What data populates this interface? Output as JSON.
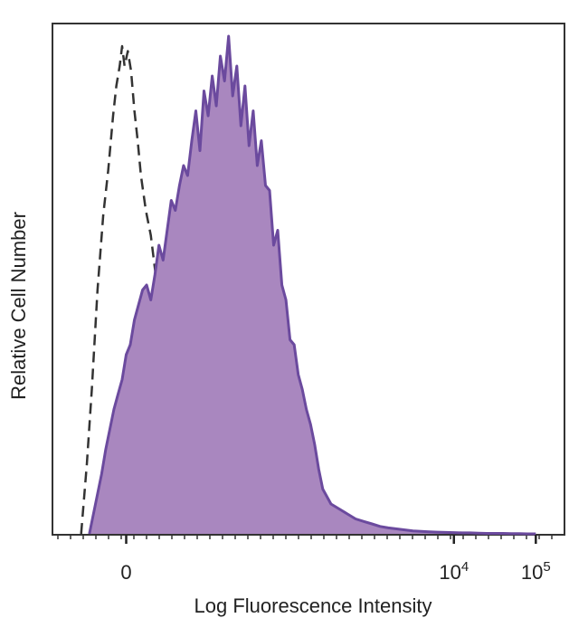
{
  "chart_data": {
    "type": "area",
    "title": "",
    "xlabel": "Log Fluorescence Intensity",
    "ylabel": "Relative Cell Number",
    "x_scale": "biexponential",
    "xlim": [
      -0.9,
      5.35
    ],
    "ylim": [
      0,
      100
    ],
    "x_ticks": [
      {
        "value": 0,
        "base": "0",
        "exp": ""
      },
      {
        "value": 4,
        "base": "10",
        "exp": "4"
      },
      {
        "value": 5,
        "base": "10",
        "exp": "5"
      }
    ],
    "grid": false,
    "legend": "none",
    "series": [
      {
        "style": "dashed-outline",
        "color": "#333333",
        "x": [
          -0.55,
          -0.48,
          -0.42,
          -0.35,
          -0.28,
          -0.22,
          -0.16,
          -0.12,
          -0.08,
          -0.05,
          -0.02,
          0.02,
          0.06,
          0.1,
          0.14,
          0.18,
          0.24,
          0.3,
          0.36,
          0.42,
          0.5,
          0.58,
          0.66,
          0.74,
          0.82,
          0.9,
          0.98,
          1.06,
          1.14,
          1.22,
          1.3,
          1.38,
          1.46,
          1.54,
          1.62,
          1.7,
          1.8,
          1.9
        ],
        "y": [
          0,
          14,
          29,
          49,
          64,
          73,
          84,
          90,
          94,
          98,
          94,
          97,
          93,
          85,
          79,
          72,
          65,
          60,
          52,
          45,
          38,
          32,
          27,
          21,
          17,
          13,
          10,
          8,
          6,
          5,
          3.5,
          2.5,
          1.8,
          1.2,
          0.8,
          0.5,
          0.2,
          0
        ]
      },
      {
        "style": "filled",
        "color": "#6b4a9e",
        "fill": "#a987bf",
        "x": [
          -0.45,
          -0.4,
          -0.35,
          -0.3,
          -0.25,
          -0.2,
          -0.15,
          -0.1,
          -0.05,
          0,
          0.05,
          0.1,
          0.15,
          0.2,
          0.25,
          0.3,
          0.35,
          0.4,
          0.45,
          0.5,
          0.55,
          0.6,
          0.65,
          0.7,
          0.75,
          0.8,
          0.85,
          0.9,
          0.95,
          1,
          1.05,
          1.1,
          1.15,
          1.2,
          1.25,
          1.3,
          1.35,
          1.4,
          1.45,
          1.5,
          1.55,
          1.6,
          1.65,
          1.7,
          1.75,
          1.8,
          1.85,
          1.9,
          1.95,
          2,
          2.05,
          2.1,
          2.15,
          2.2,
          2.25,
          2.3,
          2.35,
          2.4,
          2.5,
          2.6,
          2.7,
          2.8,
          2.9,
          3,
          3.1,
          3.2,
          3.3,
          3.4,
          3.5,
          3.6,
          3.7,
          3.8,
          3.9,
          4,
          4.1,
          4.2,
          4.3,
          4.4,
          4.5,
          4.6,
          4.7,
          4.8,
          4.9,
          5
        ],
        "y": [
          0,
          4,
          8,
          12,
          17,
          21,
          25,
          28,
          31,
          36,
          38,
          43,
          46,
          49,
          50,
          47,
          52,
          58,
          55,
          61,
          67,
          65,
          70,
          74,
          72,
          79,
          85,
          77,
          89,
          84,
          92,
          86,
          96,
          91,
          100,
          88,
          94,
          82,
          90,
          78,
          85,
          74,
          79,
          70,
          69,
          58,
          61,
          50,
          47,
          39,
          38,
          32,
          29,
          25,
          22,
          18,
          13,
          9,
          6,
          5,
          4,
          3,
          2.5,
          2,
          1.5,
          1.2,
          1,
          0.8,
          0.6,
          0.5,
          0.4,
          0.35,
          0.3,
          0.25,
          0.2,
          0.2,
          0.15,
          0.1,
          0.1,
          0.1,
          0.05,
          0.05,
          0,
          0
        ]
      }
    ]
  }
}
